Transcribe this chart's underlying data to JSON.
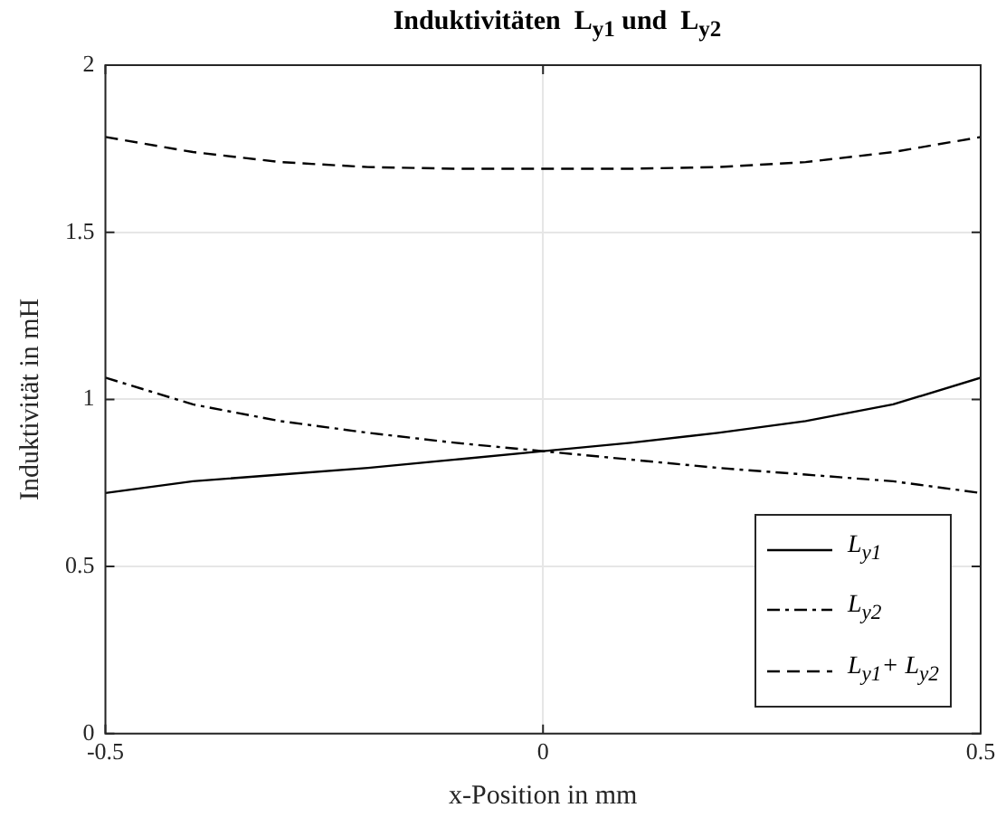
{
  "chart_data": {
    "type": "line",
    "title": "Induktivitäten  L$_{y1}$ und  L$_{y2}$",
    "xlabel": "x-Position in mm",
    "ylabel": "Induktivität in mH",
    "x": [
      -0.5,
      -0.4,
      -0.3,
      -0.2,
      -0.1,
      0,
      0.1,
      0.2,
      0.3,
      0.4,
      0.5
    ],
    "series": [
      {
        "name": "L$_{y1}$",
        "color": "#000000",
        "line_style": "solid",
        "values": [
          0.72,
          0.755,
          0.775,
          0.795,
          0.82,
          0.845,
          0.87,
          0.9,
          0.935,
          0.985,
          1.065
        ]
      },
      {
        "name": "L$_{y2}$",
        "color": "#000000",
        "line_style": "dashdot",
        "values": [
          1.065,
          0.985,
          0.935,
          0.9,
          0.87,
          0.845,
          0.82,
          0.795,
          0.775,
          0.755,
          0.72
        ]
      },
      {
        "name": "L$_{y1}$+ L$_{y2}$",
        "color": "#000000",
        "line_style": "dashed",
        "values": [
          1.785,
          1.74,
          1.71,
          1.695,
          1.69,
          1.69,
          1.69,
          1.695,
          1.71,
          1.74,
          1.785
        ]
      }
    ],
    "xlim": [
      -0.5,
      0.5
    ],
    "xticks": [
      -0.5,
      0,
      0.5
    ],
    "ylim": [
      0,
      2
    ],
    "yticks": [
      0,
      0.5,
      1,
      1.5,
      2
    ],
    "grid": true,
    "legend": "bottom right",
    "marker": "none"
  }
}
